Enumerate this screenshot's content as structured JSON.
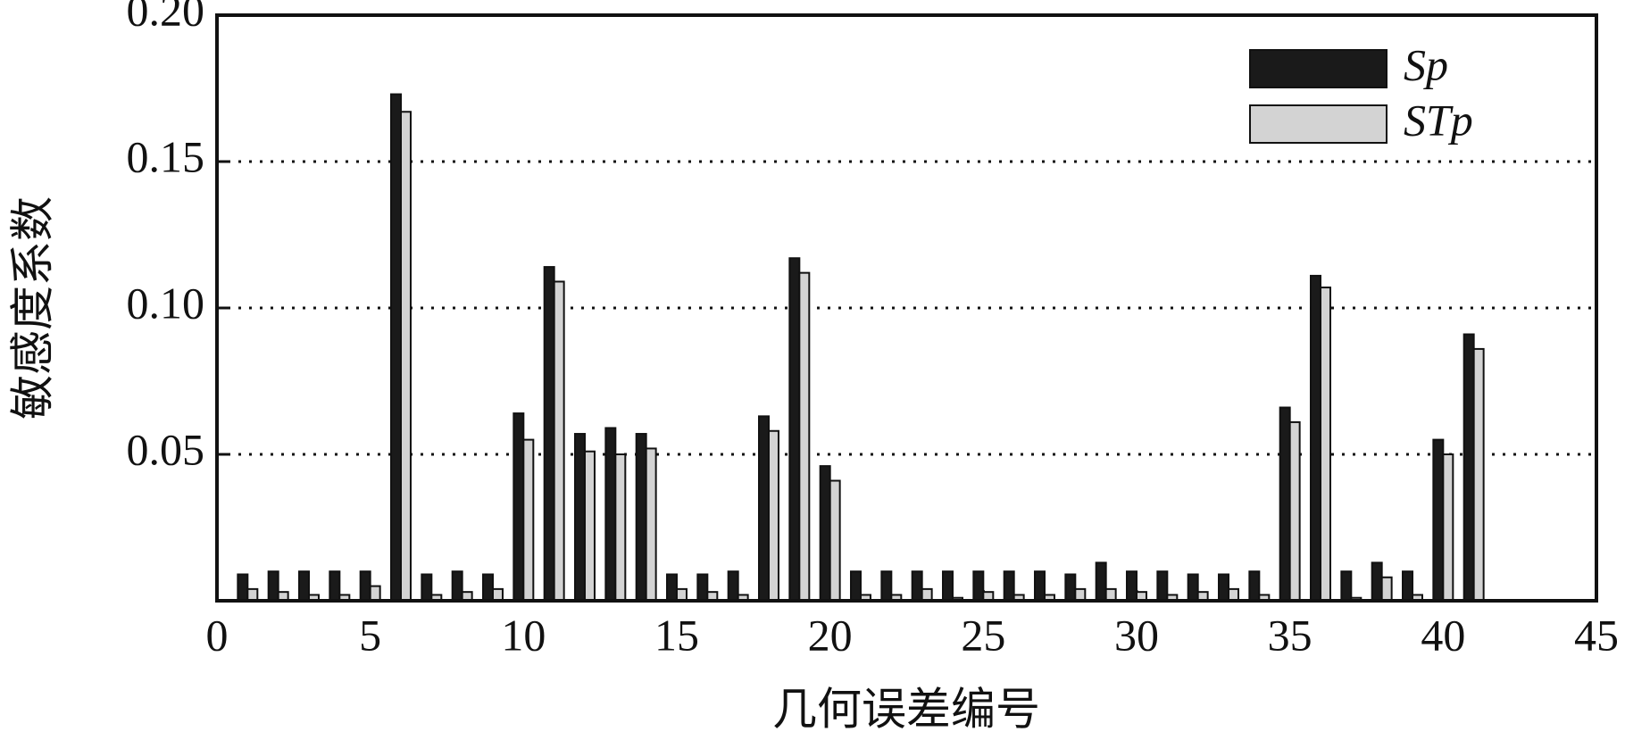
{
  "chart_data": {
    "type": "bar",
    "x_label": "几何误差编号",
    "y_label": "敏感度系数",
    "x": [
      1,
      2,
      3,
      4,
      5,
      6,
      7,
      8,
      9,
      10,
      11,
      12,
      13,
      14,
      15,
      16,
      17,
      18,
      19,
      20,
      21,
      22,
      23,
      24,
      25,
      26,
      27,
      28,
      29,
      30,
      31,
      32,
      33,
      34,
      35,
      36,
      37,
      38,
      39,
      40,
      41
    ],
    "series": [
      {
        "name": "Sp",
        "color": "#1a1a1a",
        "values": [
          0.009,
          0.01,
          0.01,
          0.01,
          0.01,
          0.173,
          0.009,
          0.01,
          0.009,
          0.064,
          0.114,
          0.057,
          0.059,
          0.057,
          0.009,
          0.009,
          0.01,
          0.063,
          0.117,
          0.046,
          0.01,
          0.01,
          0.01,
          0.01,
          0.01,
          0.01,
          0.01,
          0.009,
          0.013,
          0.01,
          0.01,
          0.009,
          0.009,
          0.01,
          0.066,
          0.111,
          0.01,
          0.013,
          0.01,
          0.055,
          0.091
        ]
      },
      {
        "name": "STp",
        "color": "#d3d3d3",
        "values": [
          0.004,
          0.003,
          0.002,
          0.002,
          0.005,
          0.167,
          0.002,
          0.003,
          0.004,
          0.055,
          0.109,
          0.051,
          0.05,
          0.052,
          0.004,
          0.003,
          0.002,
          0.058,
          0.112,
          0.041,
          0.002,
          0.002,
          0.004,
          0.001,
          0.003,
          0.002,
          0.002,
          0.004,
          0.004,
          0.003,
          0.002,
          0.003,
          0.004,
          0.002,
          0.061,
          0.107,
          0.001,
          0.008,
          0.002,
          0.05,
          0.086
        ]
      }
    ],
    "xlim": [
      0,
      45
    ],
    "xticks": [
      0,
      5,
      10,
      15,
      20,
      25,
      30,
      35,
      40,
      45
    ],
    "ylim": [
      0,
      0.2
    ],
    "yticks": [
      0.05,
      {
        "value": 0.1,
        "label": "0.10"
      },
      0.15,
      {
        "value": 0.2,
        "label": "0.20"
      }
    ],
    "grid": true,
    "legend": "upper right"
  }
}
